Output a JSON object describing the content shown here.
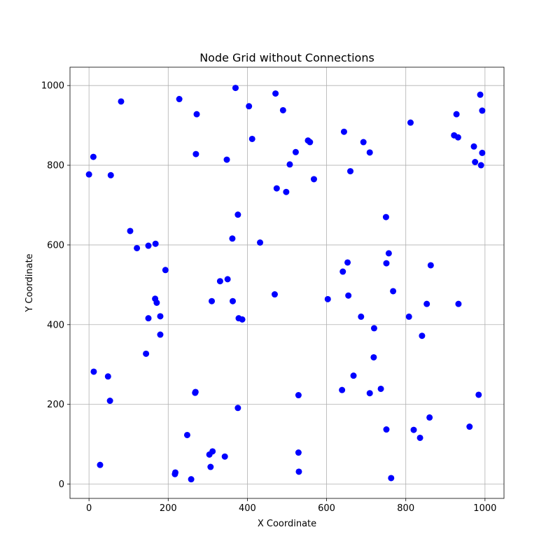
{
  "chart_data": {
    "type": "scatter",
    "title": "Node Grid without Connections",
    "xlabel": "X Coordinate",
    "ylabel": "Y Coordinate",
    "xlim": [
      -48,
      1048
    ],
    "ylim": [
      -36,
      1046
    ],
    "xticks": [
      0,
      200,
      400,
      600,
      800,
      1000
    ],
    "yticks": [
      0,
      200,
      400,
      600,
      800,
      1000
    ],
    "grid": true,
    "marker_color": "#0000ff",
    "series": [
      {
        "points": [
          [
            228,
            966
          ],
          [
            370,
            994
          ],
          [
            471,
            980
          ],
          [
            81,
            960
          ],
          [
            272,
            928
          ],
          [
            404,
            948
          ],
          [
            490,
            938
          ],
          [
            11,
            821
          ],
          [
            0,
            777
          ],
          [
            55,
            775
          ],
          [
            270,
            828
          ],
          [
            348,
            814
          ],
          [
            412,
            866
          ],
          [
            522,
            833
          ],
          [
            507,
            802
          ],
          [
            553,
            862
          ],
          [
            558,
            858
          ],
          [
            568,
            765
          ],
          [
            474,
            742
          ],
          [
            498,
            733
          ],
          [
            644,
            884
          ],
          [
            693,
            858
          ],
          [
            709,
            832
          ],
          [
            660,
            785
          ],
          [
            812,
            907
          ],
          [
            922,
            875
          ],
          [
            928,
            928
          ],
          [
            932,
            870
          ],
          [
            972,
            847
          ],
          [
            975,
            808
          ],
          [
            988,
            977
          ],
          [
            993,
            937
          ],
          [
            993,
            831
          ],
          [
            990,
            800
          ],
          [
            104,
            635
          ],
          [
            121,
            592
          ],
          [
            150,
            598
          ],
          [
            168,
            603
          ],
          [
            376,
            676
          ],
          [
            362,
            616
          ],
          [
            432,
            606
          ],
          [
            750,
            670
          ],
          [
            757,
            579
          ],
          [
            751,
            554
          ],
          [
            863,
            549
          ],
          [
            653,
            556
          ],
          [
            641,
            533
          ],
          [
            193,
            537
          ],
          [
            167,
            465
          ],
          [
            171,
            455
          ],
          [
            150,
            416
          ],
          [
            180,
            421
          ],
          [
            180,
            375
          ],
          [
            144,
            327
          ],
          [
            310,
            459
          ],
          [
            331,
            509
          ],
          [
            350,
            514
          ],
          [
            363,
            459
          ],
          [
            378,
            416
          ],
          [
            387,
            413
          ],
          [
            469,
            476
          ],
          [
            603,
            464
          ],
          [
            655,
            473
          ],
          [
            687,
            420
          ],
          [
            720,
            391
          ],
          [
            768,
            484
          ],
          [
            808,
            420
          ],
          [
            853,
            452
          ],
          [
            933,
            452
          ],
          [
            841,
            372
          ],
          [
            12,
            282
          ],
          [
            48,
            270
          ],
          [
            53,
            209
          ],
          [
            269,
            231
          ],
          [
            268,
            229
          ],
          [
            376,
            191
          ],
          [
            529,
            223
          ],
          [
            639,
            236
          ],
          [
            668,
            272
          ],
          [
            719,
            318
          ],
          [
            737,
            239
          ],
          [
            709,
            228
          ],
          [
            28,
            48
          ],
          [
            248,
            123
          ],
          [
            218,
            29
          ],
          [
            217,
            25
          ],
          [
            258,
            12
          ],
          [
            304,
            74
          ],
          [
            312,
            82
          ],
          [
            307,
            43
          ],
          [
            343,
            69
          ],
          [
            529,
            79
          ],
          [
            530,
            31
          ],
          [
            751,
            137
          ],
          [
            763,
            15
          ],
          [
            820,
            136
          ],
          [
            836,
            116
          ],
          [
            860,
            167
          ],
          [
            961,
            144
          ],
          [
            984,
            224
          ]
        ]
      }
    ]
  }
}
